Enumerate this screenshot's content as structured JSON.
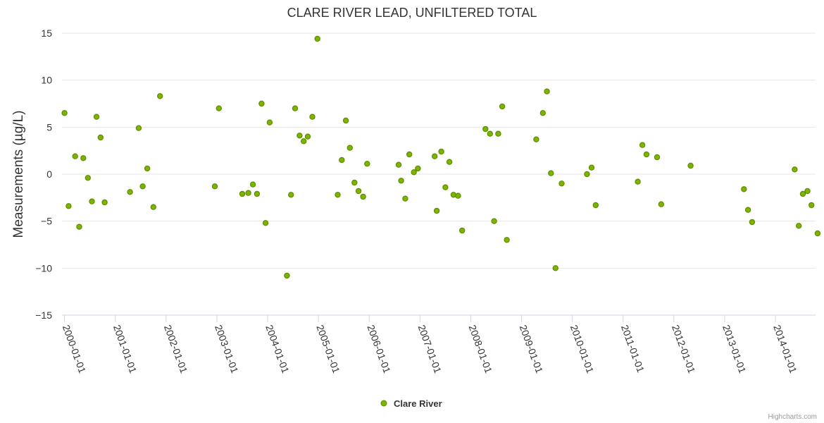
{
  "chart_data": {
    "type": "scatter",
    "title": "CLARE RIVER LEAD, UNFILTERED TOTAL",
    "xlabel": "",
    "ylabel": "Measurements (µg/L)",
    "ylim": [
      -15,
      15
    ],
    "yticks": [
      -15,
      -10,
      -5,
      0,
      5,
      10,
      15
    ],
    "xlim": [
      1999.95,
      2014.79
    ],
    "xticks": [
      {
        "label": "2000-01-01",
        "value": 2000
      },
      {
        "label": "2001-01-01",
        "value": 2001
      },
      {
        "label": "2002-01-01",
        "value": 2002
      },
      {
        "label": "2003-01-01",
        "value": 2003
      },
      {
        "label": "2004-01-01",
        "value": 2004
      },
      {
        "label": "2005-01-01",
        "value": 2005
      },
      {
        "label": "2006-01-01",
        "value": 2006
      },
      {
        "label": "2007-01-01",
        "value": 2007
      },
      {
        "label": "2008-01-01",
        "value": 2008
      },
      {
        "label": "2009-01-01",
        "value": 2009
      },
      {
        "label": "2010-01-01",
        "value": 2010
      },
      {
        "label": "2011-01-01",
        "value": 2011
      },
      {
        "label": "2012-01-01",
        "value": 2012
      },
      {
        "label": "2013-01-01",
        "value": 2013
      },
      {
        "label": "2014-01-01",
        "value": 2014
      }
    ],
    "grid": true,
    "legend_position": "bottom-center",
    "credits": "Highcharts.com",
    "series": [
      {
        "name": "Clare River",
        "color": "#7cb500",
        "edge_color": "#5f8c00",
        "points": [
          [
            2000.0,
            6.5
          ],
          [
            2000.08,
            -3.4
          ],
          [
            2000.21,
            1.9
          ],
          [
            2000.29,
            -5.6
          ],
          [
            2000.37,
            1.7
          ],
          [
            2000.46,
            -0.4
          ],
          [
            2000.54,
            -2.9
          ],
          [
            2000.63,
            6.1
          ],
          [
            2000.71,
            3.9
          ],
          [
            2000.79,
            -3.0
          ],
          [
            2001.29,
            -1.9
          ],
          [
            2001.46,
            4.9
          ],
          [
            2001.54,
            -1.3
          ],
          [
            2001.63,
            0.6
          ],
          [
            2001.75,
            -3.5
          ],
          [
            2001.88,
            8.3
          ],
          [
            2002.96,
            -1.3
          ],
          [
            2003.04,
            7.0
          ],
          [
            2003.5,
            -2.1
          ],
          [
            2003.62,
            -2.0
          ],
          [
            2003.71,
            -1.1
          ],
          [
            2003.79,
            -2.1
          ],
          [
            2003.88,
            7.5
          ],
          [
            2003.96,
            -5.2
          ],
          [
            2004.04,
            5.5
          ],
          [
            2004.38,
            -10.8
          ],
          [
            2004.46,
            -2.2
          ],
          [
            2004.54,
            7.0
          ],
          [
            2004.63,
            4.1
          ],
          [
            2004.71,
            3.5
          ],
          [
            2004.79,
            4.0
          ],
          [
            2004.88,
            6.1
          ],
          [
            2004.98,
            14.4
          ],
          [
            2005.38,
            -2.2
          ],
          [
            2005.46,
            1.5
          ],
          [
            2005.54,
            5.7
          ],
          [
            2005.62,
            2.8
          ],
          [
            2005.71,
            -0.9
          ],
          [
            2005.79,
            -1.8
          ],
          [
            2005.88,
            -2.4
          ],
          [
            2005.96,
            1.1
          ],
          [
            2006.58,
            1.0
          ],
          [
            2006.63,
            -0.7
          ],
          [
            2006.71,
            -2.6
          ],
          [
            2006.79,
            2.1
          ],
          [
            2006.88,
            0.2
          ],
          [
            2006.96,
            0.6
          ],
          [
            2007.29,
            1.9
          ],
          [
            2007.33,
            -3.9
          ],
          [
            2007.42,
            2.4
          ],
          [
            2007.5,
            -1.4
          ],
          [
            2007.58,
            1.3
          ],
          [
            2007.66,
            -2.2
          ],
          [
            2007.75,
            -2.3
          ],
          [
            2007.83,
            -6.0
          ],
          [
            2008.29,
            4.8
          ],
          [
            2008.38,
            4.3
          ],
          [
            2008.46,
            -5.0
          ],
          [
            2008.54,
            4.3
          ],
          [
            2008.62,
            7.2
          ],
          [
            2008.71,
            -7.0
          ],
          [
            2009.29,
            3.7
          ],
          [
            2009.42,
            6.5
          ],
          [
            2009.5,
            8.8
          ],
          [
            2009.58,
            0.1
          ],
          [
            2009.67,
            -10.0
          ],
          [
            2009.79,
            -1.0
          ],
          [
            2010.29,
            0.0
          ],
          [
            2010.38,
            0.7
          ],
          [
            2010.46,
            -3.3
          ],
          [
            2011.29,
            -0.8
          ],
          [
            2011.38,
            3.1
          ],
          [
            2011.46,
            2.1
          ],
          [
            2011.67,
            1.8
          ],
          [
            2011.75,
            -3.2
          ],
          [
            2012.33,
            0.9
          ],
          [
            2013.38,
            -1.6
          ],
          [
            2013.46,
            -3.8
          ],
          [
            2013.54,
            -5.1
          ],
          [
            2014.38,
            0.5
          ],
          [
            2014.46,
            -5.5
          ],
          [
            2014.54,
            -2.1
          ],
          [
            2014.63,
            -1.8
          ],
          [
            2014.71,
            -3.3
          ],
          [
            2014.83,
            -6.3
          ]
        ]
      }
    ]
  }
}
